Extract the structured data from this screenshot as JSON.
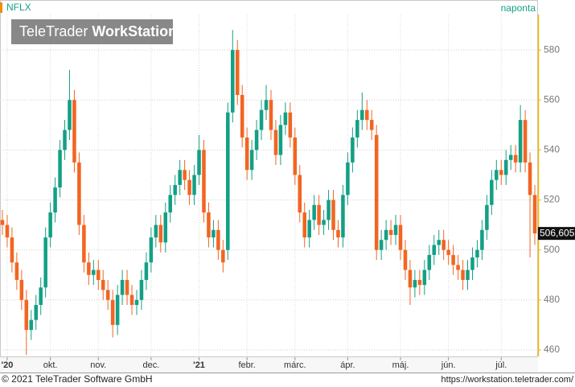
{
  "chart_data": {
    "type": "candlestick",
    "symbol": "NFLX",
    "interval": "naponta",
    "watermark": [
      "TeleTrader",
      "WorkStation"
    ],
    "footer_left": "© 2021 TeleTrader Software GmbH",
    "footer_right": "https://workstation.teletrader.com/",
    "up_color": "#13a085",
    "down_color": "#f26522",
    "grid": true,
    "ylim": [
      457.4,
      594.2
    ],
    "yticks": [
      460,
      480,
      500,
      520,
      540,
      560,
      580
    ],
    "last_label": "506,605",
    "categories": [
      null,
      "'20",
      null,
      null,
      null,
      null,
      null,
      null,
      null,
      null,
      "okt.",
      null,
      null,
      null,
      null,
      null,
      null,
      null,
      null,
      null,
      "nov.",
      null,
      null,
      null,
      null,
      null,
      null,
      null,
      null,
      null,
      null,
      "dec.",
      null,
      null,
      null,
      null,
      null,
      null,
      null,
      null,
      null,
      "'21",
      null,
      null,
      null,
      null,
      null,
      null,
      null,
      null,
      null,
      "febr.",
      null,
      null,
      null,
      null,
      null,
      null,
      null,
      null,
      null,
      "márc.",
      null,
      null,
      null,
      null,
      null,
      null,
      null,
      null,
      null,
      null,
      "ápr.",
      null,
      null,
      null,
      null,
      null,
      null,
      null,
      null,
      null,
      null,
      "máj.",
      null,
      null,
      null,
      null,
      null,
      null,
      null,
      null,
      null,
      "jún.",
      null,
      null,
      null,
      null,
      null,
      null,
      null,
      null,
      null,
      null,
      "júl.",
      null,
      null,
      null,
      null,
      null,
      null,
      null
    ],
    "open": [
      512,
      510,
      505,
      495,
      488,
      480,
      468,
      472,
      478,
      485,
      505,
      515,
      525,
      540,
      548,
      560,
      535,
      510,
      495,
      490,
      492,
      488,
      484,
      480,
      470,
      482,
      488,
      482,
      478,
      480,
      488,
      495,
      505,
      510,
      503,
      515,
      522,
      526,
      532,
      528,
      522,
      530,
      540,
      515,
      505,
      508,
      500,
      500,
      555,
      580,
      562,
      545,
      532,
      540,
      548,
      556,
      560,
      548,
      538,
      550,
      555,
      545,
      530,
      515,
      505,
      512,
      518,
      510,
      512,
      520,
      508,
      505,
      522,
      535,
      545,
      552,
      556,
      552,
      546,
      500,
      504,
      508,
      506,
      510,
      500,
      492,
      485,
      488,
      486,
      492,
      498,
      502,
      504,
      500,
      498,
      494,
      492,
      488,
      492,
      497,
      500,
      508,
      518,
      528,
      532,
      530,
      536,
      538,
      535,
      552,
      535,
      522
    ],
    "high": [
      516,
      514,
      509,
      499,
      492,
      484,
      476,
      482,
      489,
      509,
      519,
      529,
      544,
      552,
      572,
      564,
      539,
      514,
      499,
      496,
      496,
      492,
      488,
      484,
      486,
      492,
      492,
      486,
      484,
      492,
      499,
      509,
      514,
      514,
      519,
      526,
      530,
      536,
      536,
      532,
      534,
      546,
      544,
      519,
      512,
      512,
      504,
      559,
      588,
      584,
      566,
      549,
      544,
      552,
      560,
      566,
      564,
      552,
      554,
      559,
      559,
      549,
      534,
      519,
      516,
      522,
      522,
      516,
      524,
      524,
      512,
      526,
      539,
      549,
      556,
      563,
      560,
      556,
      550,
      508,
      512,
      512,
      514,
      514,
      504,
      496,
      492,
      492,
      496,
      502,
      506,
      508,
      508,
      504,
      502,
      498,
      496,
      496,
      501,
      504,
      512,
      522,
      532,
      536,
      536,
      540,
      542,
      542,
      558,
      556,
      539,
      526
    ],
    "low": [
      506,
      501,
      491,
      484,
      476,
      458,
      464,
      468,
      474,
      481,
      501,
      511,
      521,
      536,
      544,
      531,
      506,
      491,
      486,
      486,
      484,
      480,
      476,
      465,
      466,
      478,
      478,
      474,
      474,
      476,
      484,
      491,
      501,
      499,
      499,
      511,
      518,
      522,
      524,
      518,
      518,
      526,
      511,
      501,
      501,
      496,
      491,
      496,
      551,
      558,
      541,
      528,
      528,
      536,
      544,
      552,
      544,
      534,
      534,
      546,
      541,
      526,
      511,
      501,
      501,
      508,
      506,
      506,
      508,
      504,
      501,
      501,
      518,
      531,
      541,
      548,
      548,
      544,
      496,
      496,
      500,
      502,
      502,
      496,
      488,
      478,
      481,
      482,
      482,
      488,
      494,
      498,
      496,
      494,
      490,
      488,
      484,
      484,
      488,
      493,
      496,
      504,
      514,
      524,
      526,
      526,
      532,
      531,
      531,
      531,
      497,
      502
    ],
    "close": [
      510,
      505,
      495,
      488,
      480,
      468,
      472,
      478,
      485,
      505,
      515,
      525,
      540,
      548,
      560,
      535,
      510,
      495,
      490,
      492,
      488,
      484,
      480,
      470,
      482,
      488,
      482,
      478,
      480,
      488,
      495,
      505,
      510,
      503,
      515,
      522,
      526,
      532,
      528,
      522,
      530,
      540,
      515,
      505,
      508,
      500,
      495,
      555,
      580,
      562,
      545,
      532,
      540,
      548,
      556,
      560,
      548,
      538,
      550,
      555,
      545,
      530,
      515,
      505,
      512,
      518,
      510,
      512,
      520,
      508,
      505,
      522,
      535,
      545,
      552,
      556,
      552,
      548,
      500,
      504,
      508,
      506,
      510,
      500,
      492,
      485,
      488,
      486,
      492,
      498,
      502,
      504,
      500,
      498,
      494,
      492,
      488,
      492,
      497,
      500,
      508,
      518,
      528,
      532,
      530,
      536,
      538,
      535,
      552,
      535,
      522,
      506.605
    ]
  }
}
